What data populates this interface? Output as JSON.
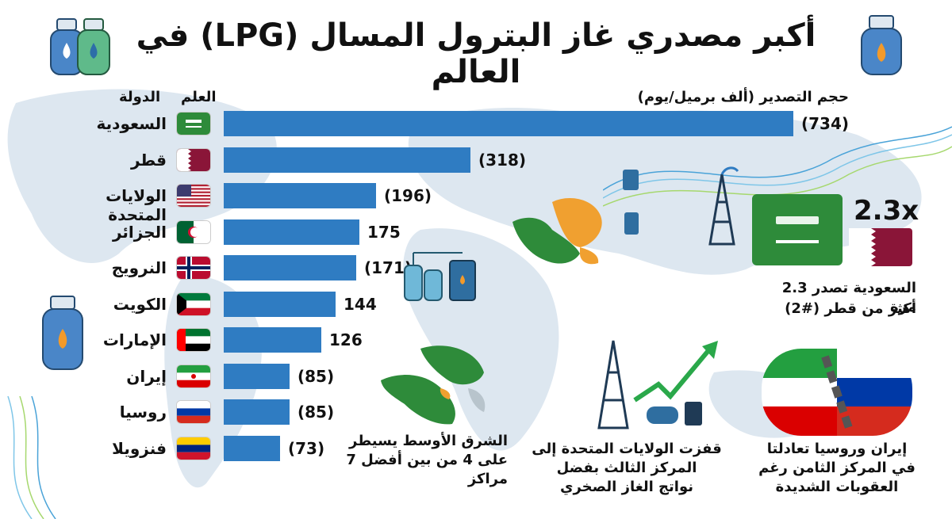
{
  "title": "أكبر مصدري غاز البترول المسال (LPG) في العالم",
  "headers": {
    "country": "الدولة",
    "flag": "العلم",
    "volume": "حجم التصدير (ألف برميل/يوم)"
  },
  "chart_data": {
    "type": "bar",
    "orientation": "horizontal",
    "categories": [
      "السعودية",
      "قطر",
      "الولايات المتحدة",
      "الجزائر",
      "النرويج",
      "الكويت",
      "الإمارات",
      "إيران",
      "روسيا",
      "فنزويلا"
    ],
    "values": [
      734,
      318,
      196,
      175,
      171,
      144,
      126,
      85,
      85,
      73
    ],
    "value_labels": [
      "(734)",
      "(318)",
      "(196)",
      "175",
      "(171)",
      "144",
      "126",
      "(85)",
      "(85)",
      "(73)"
    ],
    "bar_color": "#2f7cc2"
  },
  "flags": [
    "saudi-flag",
    "qatar-flag",
    "usa-flag",
    "algeria-flag",
    "norway-flag",
    "kuwait-flag",
    "uae-flag",
    "iran-flag",
    "russia-flag",
    "venezuela-flag"
  ],
  "callout_ratio": {
    "value": "2.3x",
    "text_line1": "السعودية تصدر 2.3 مرة",
    "text_line2": "أكثر من قطر (#2)"
  },
  "notes": {
    "middle_east": [
      "الشرق الأوسط يسيطر",
      "على 4 من بين أفضل 7",
      "مراكز"
    ],
    "usa": [
      "قفزت الولايات المتحدة إلى",
      "المركز الثالث بفضل",
      "نواتج الغاز الصخري"
    ],
    "iran_russia": [
      "إيران وروسيا تعادلتا",
      "في المركز الثامن رغم",
      "العقوبات الشديدة"
    ]
  },
  "colors": {
    "bar": "#2f7cc2",
    "map": "#d6e2ec",
    "saudi_green": "#2e8b3a",
    "orange": "#f0a030"
  }
}
